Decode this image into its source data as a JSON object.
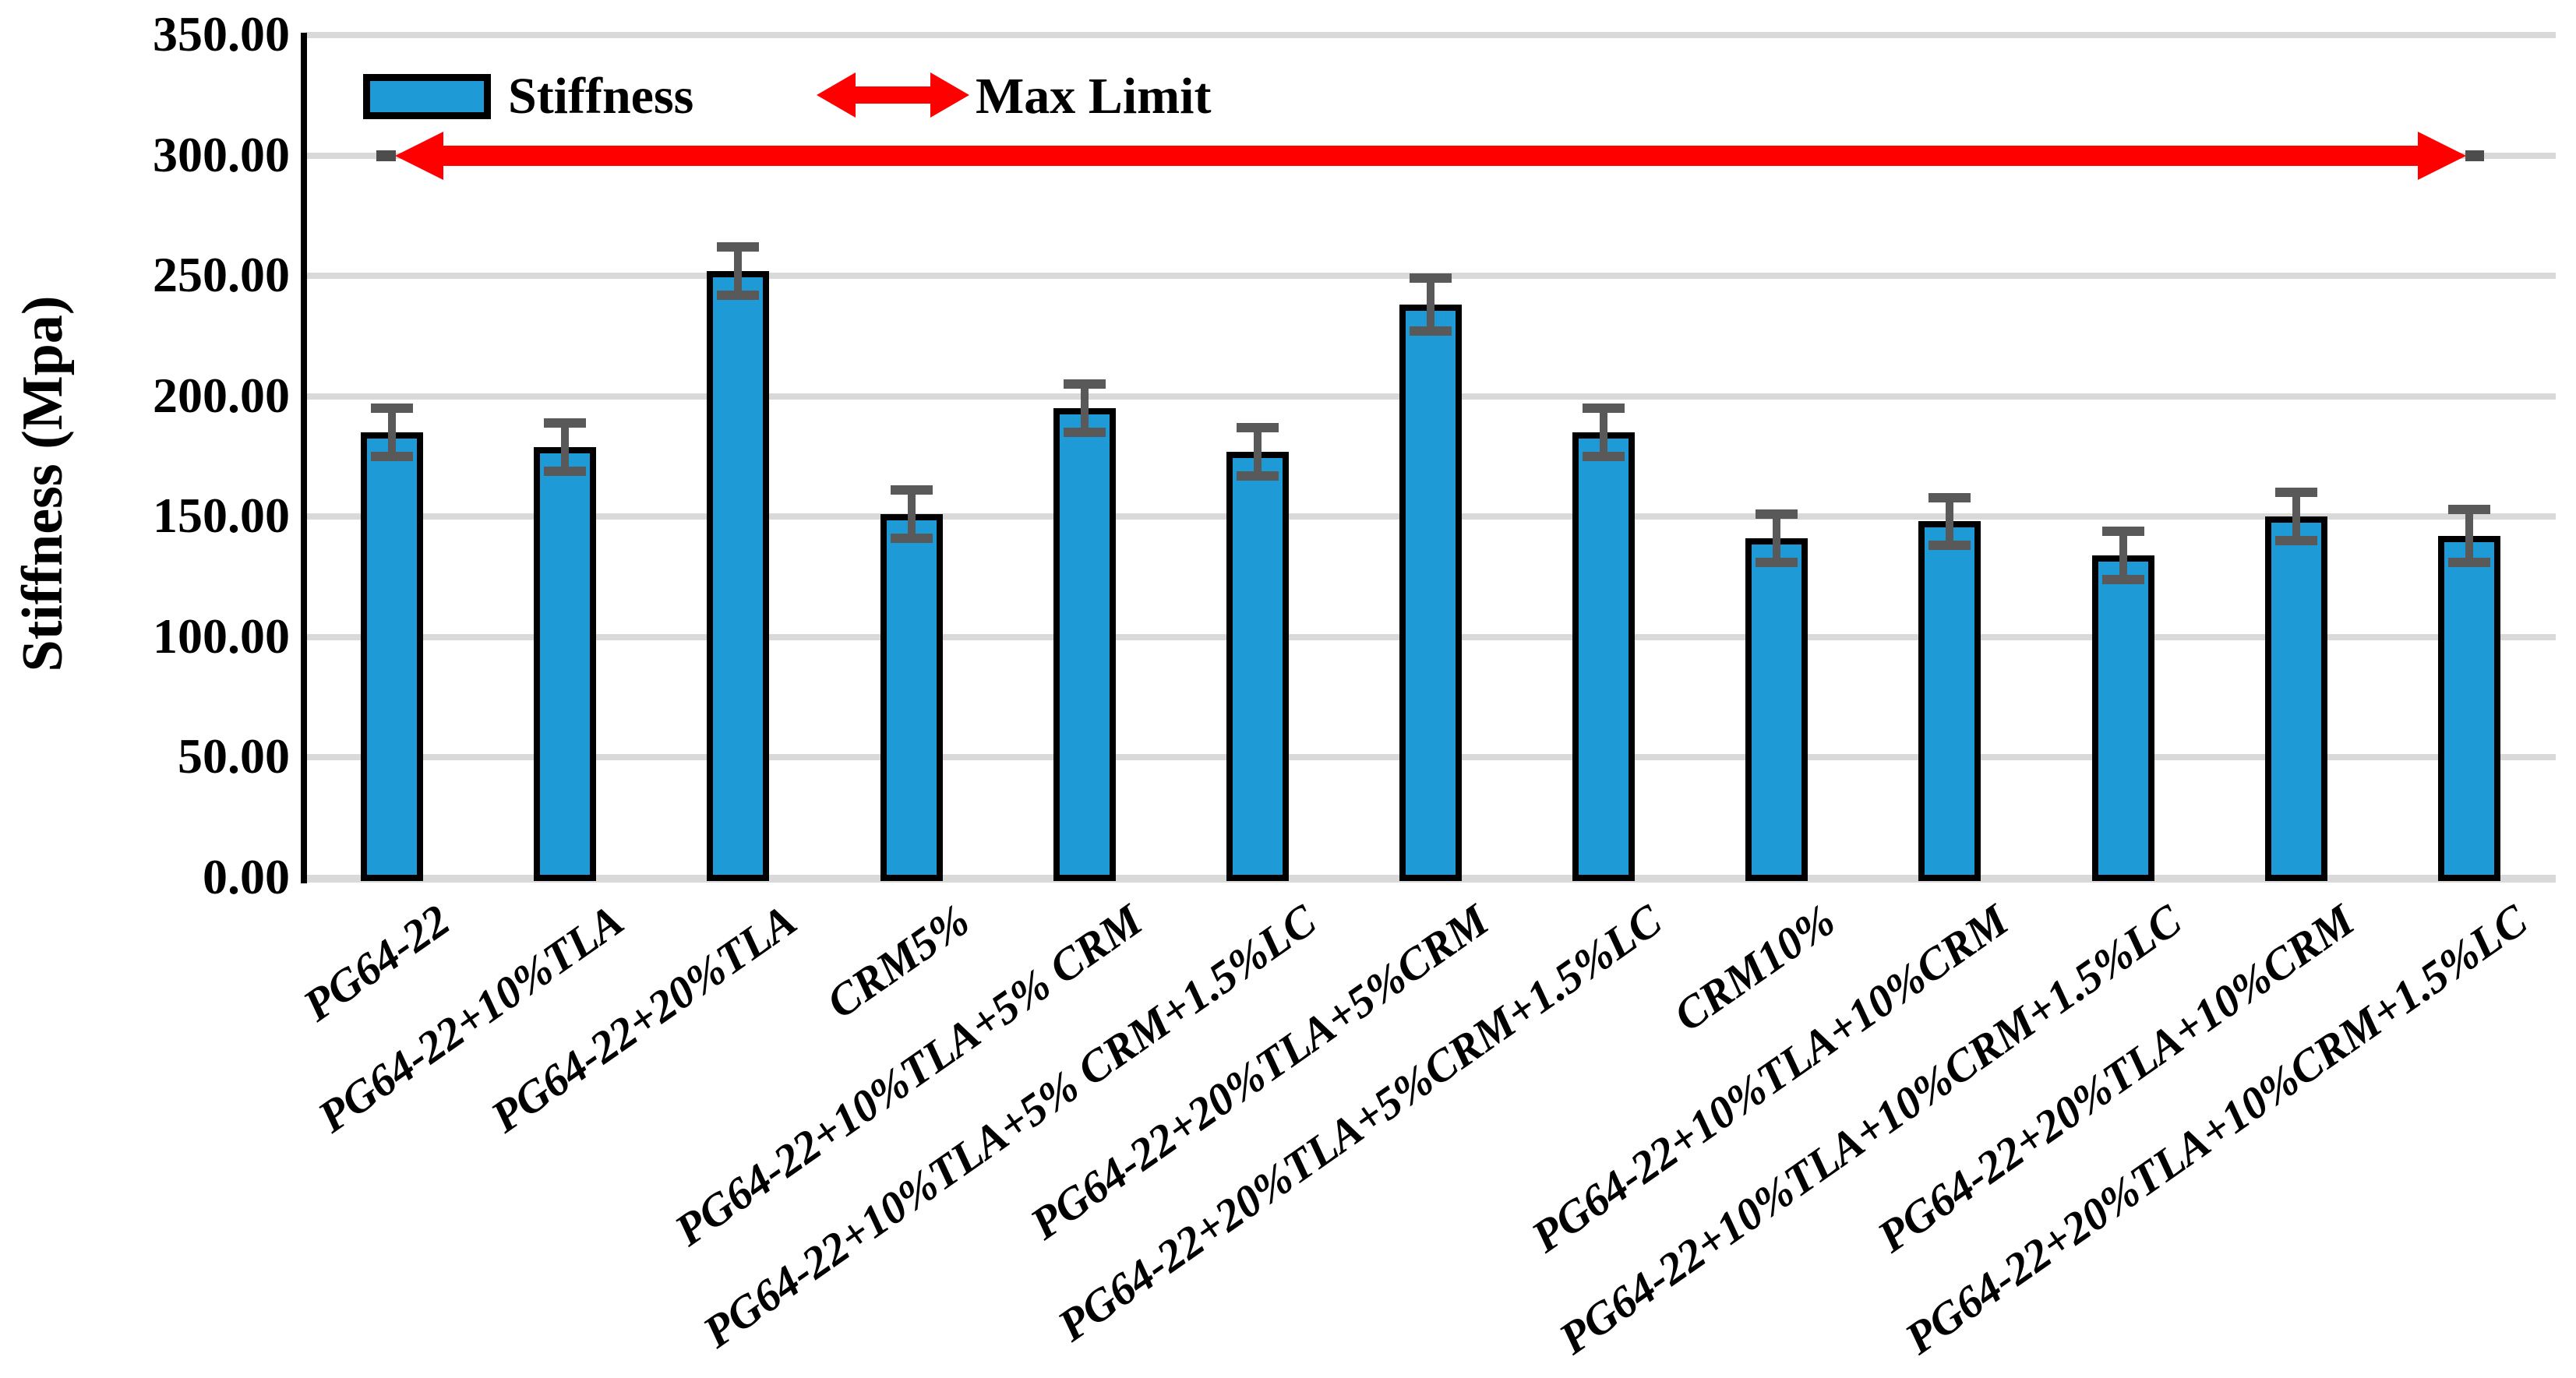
{
  "legend": {
    "stiffness_label": "Stiffness",
    "max_limit_label": "Max Limit"
  },
  "y_axis": {
    "title": "Stiffness (Mpa)",
    "tick_labels": [
      "350.00",
      "300.00",
      "250.00",
      "200.00",
      "150.00",
      "100.00",
      "50.00",
      "0.00"
    ]
  },
  "chart_data": {
    "type": "bar",
    "title": "",
    "xlabel": "",
    "ylabel": "Stiffness (Mpa)",
    "ylim": [
      0,
      350
    ],
    "ytick_interval": 50,
    "grid": true,
    "legend_position": "inside-top-left",
    "categories": [
      "PG64-22",
      "PG64-22+10%TLA",
      "PG64-22+20%TLA",
      "CRM5%",
      "PG64-22+10%TLA+5% CRM",
      "PG64-22+10%TLA+5% CRM+1.5%LC",
      "PG64-22+20%TLA+5%CRM",
      "PG64-22+20%TLA+5%CRM+1.5%LC",
      "CRM10%",
      "PG64-22+10%TLA+10%CRM",
      "PG64-22+10%TLA+10%CRM+1.5%LC",
      "PG64-22+20%TLA+10%CRM",
      "PG64-22+20%TLA+10%CRM+1.5%LC"
    ],
    "series": [
      {
        "name": "Stiffness",
        "values": [
          185,
          179,
          252,
          151,
          195,
          177,
          238,
          185,
          141,
          148,
          134,
          150,
          142
        ],
        "errors": [
          10,
          10,
          10,
          10,
          10,
          10,
          11,
          10,
          10,
          10,
          10,
          10,
          11
        ]
      }
    ],
    "annotations": [
      {
        "type": "horizontal-double-arrow",
        "label": "Max Limit",
        "y": 300
      }
    ]
  },
  "colors": {
    "bar_fill": "#1e9ad7",
    "bar_border": "#000000",
    "error_bar": "#595959",
    "max_limit_arrow": "#fe0000",
    "max_limit_line_cap": "#4d4d4d",
    "gridline": "#d9d9d9",
    "axis_line": "#000000"
  }
}
